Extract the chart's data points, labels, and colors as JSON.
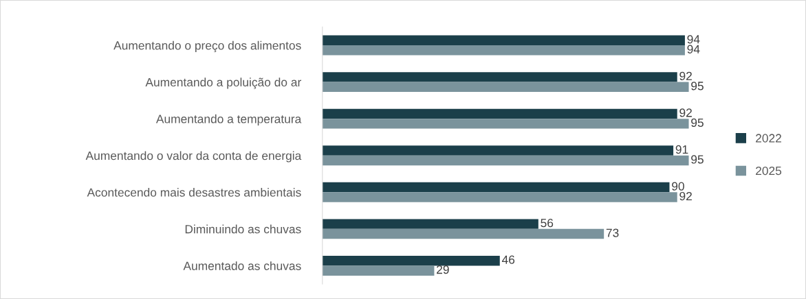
{
  "chart_data": {
    "type": "bar",
    "orientation": "horizontal",
    "data_labels": true,
    "legend": "right",
    "grid": false,
    "categories": [
      "Aumentando o preço dos alimentos",
      "Aumentando a poluição do ar",
      "Aumentando a temperatura",
      "Aumentando o valor da conta de energia",
      "Acontecendo mais desastres ambientais",
      "Diminuindo as chuvas",
      "Aumentado as chuvas"
    ],
    "series": [
      {
        "name": "2022",
        "color": "#1b3f4a",
        "values": [
          94,
          92,
          92,
          91,
          90,
          56,
          46
        ]
      },
      {
        "name": "2025",
        "color": "#7a939c",
        "values": [
          94,
          95,
          95,
          95,
          92,
          73,
          29
        ]
      }
    ]
  }
}
